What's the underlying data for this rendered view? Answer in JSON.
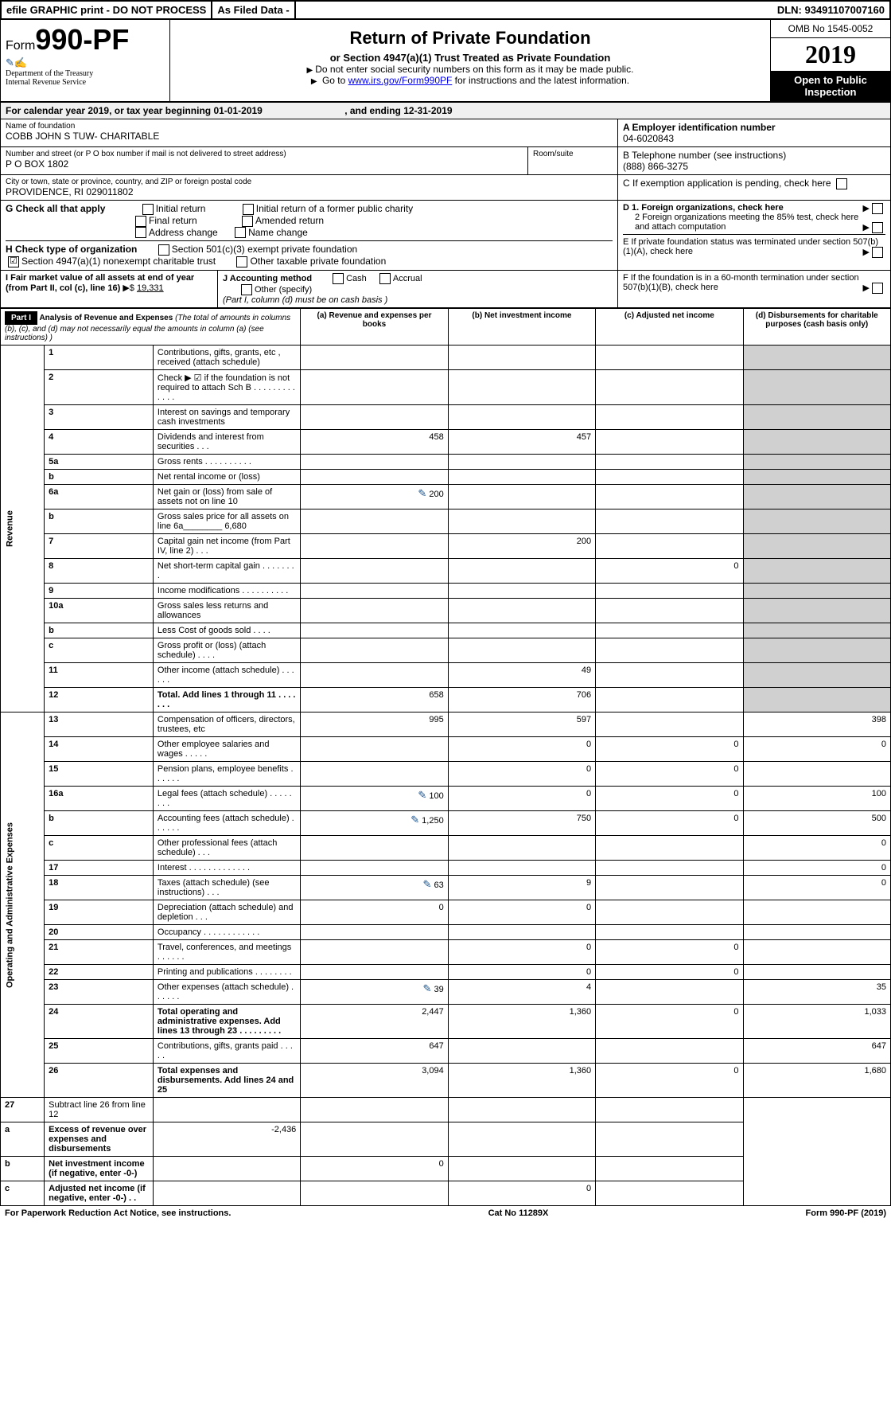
{
  "topbar": {
    "efile": "efile GRAPHIC print - DO NOT PROCESS",
    "asfiled": "As Filed Data -",
    "dln_label": "DLN:",
    "dln": "93491107007160"
  },
  "header": {
    "form_prefix": "Form",
    "form_number": "990-PF",
    "dept1": "Department of the Treasury",
    "dept2": "Internal Revenue Service",
    "title": "Return of Private Foundation",
    "subtitle": "or Section 4947(a)(1) Trust Treated as Private Foundation",
    "instr1": "Do not enter social security numbers on this form as it may be made public.",
    "instr2_pre": "Go to ",
    "instr2_link": "www.irs.gov/Form990PF",
    "instr2_post": " for instructions and the latest information.",
    "omb": "OMB No 1545-0052",
    "year": "2019",
    "inspection": "Open to Public Inspection"
  },
  "calendar": {
    "pre": "For calendar year 2019, or tax year beginning ",
    "begin": "01-01-2019",
    "mid": ", and ending ",
    "end": "12-31-2019"
  },
  "entity": {
    "name_label": "Name of foundation",
    "name": "COBB JOHN S TUW- CHARITABLE",
    "ein_label": "A Employer identification number",
    "ein": "04-6020843",
    "addr_label": "Number and street (or P O  box number if mail is not delivered to street address)",
    "addr": "P O BOX 1802",
    "room_label": "Room/suite",
    "phone_label": "B Telephone number (see instructions)",
    "phone": "(888) 866-3275",
    "city_label": "City or town, state or province, country, and ZIP or foreign postal code",
    "city": "PROVIDENCE, RI  029011802",
    "c_label": "C If exemption application is pending, check here"
  },
  "checks": {
    "g_label": "G Check all that apply",
    "g1": "Initial return",
    "g2": "Initial return of a former public charity",
    "g3": "Final return",
    "g4": "Amended return",
    "g5": "Address change",
    "g6": "Name change",
    "d1": "D 1. Foreign organizations, check here",
    "d2": "2 Foreign organizations meeting the 85% test, check here and attach computation",
    "e": "E  If private foundation status was terminated under section 507(b)(1)(A), check here",
    "h_label": "H Check type of organization",
    "h1": "Section 501(c)(3) exempt private foundation",
    "h2": "Section 4947(a)(1) nonexempt charitable trust",
    "h3": "Other taxable private foundation",
    "i_label": "I Fair market value of all assets at end of year (from Part II, col  (c), line 16)",
    "i_val": "19,331",
    "j_label": "J Accounting method",
    "j1": "Cash",
    "j2": "Accrual",
    "j3": "Other (specify)",
    "j_note": "(Part I, column (d) must be on cash basis )",
    "f": "F  If the foundation is in a 60-month termination under section 507(b)(1)(B), check here"
  },
  "part1": {
    "label": "Part I",
    "title": "Analysis of Revenue and Expenses",
    "title_note": "(The total of amounts in columns (b), (c), and (d) may not necessarily equal the amounts in column (a) (see instructions) )",
    "col_a": "(a) Revenue and expenses per books",
    "col_b": "(b) Net investment income",
    "col_c": "(c) Adjusted net income",
    "col_d": "(d) Disbursements for charitable purposes (cash basis only)",
    "revenue_label": "Revenue",
    "expenses_label": "Operating and Administrative Expenses"
  },
  "rows": [
    {
      "n": "1",
      "d": "Contributions, gifts, grants, etc , received (attach schedule)",
      "a": "",
      "b": "",
      "c": "",
      "e": ""
    },
    {
      "n": "2",
      "d": "Check ▶ ☑ if the foundation is not required to attach Sch  B   .  .  .  .  .  .  .  .  .  .  .  .  .",
      "a": "",
      "b": "",
      "c": "",
      "e": ""
    },
    {
      "n": "3",
      "d": "Interest on savings and temporary cash investments",
      "a": "",
      "b": "",
      "c": "",
      "e": ""
    },
    {
      "n": "4",
      "d": "Dividends and interest from securities   .  .  .",
      "a": "458",
      "b": "457",
      "c": "",
      "e": ""
    },
    {
      "n": "5a",
      "d": "Gross rents   .  .  .  .  .  .  .  .  .  .",
      "a": "",
      "b": "",
      "c": "",
      "e": ""
    },
    {
      "n": "b",
      "d": "Net rental income or (loss)",
      "a": "",
      "b": "",
      "c": "",
      "e": ""
    },
    {
      "n": "6a",
      "d": "Net gain or (loss) from sale of assets not on line 10",
      "a": "200",
      "b": "",
      "c": "",
      "e": "",
      "pen": true
    },
    {
      "n": "b",
      "d": "Gross sales price for all assets on line 6a________  6,680",
      "a": "",
      "b": "",
      "c": "",
      "e": ""
    },
    {
      "n": "7",
      "d": "Capital gain net income (from Part IV, line 2)  .  .  .",
      "a": "",
      "b": "200",
      "c": "",
      "e": ""
    },
    {
      "n": "8",
      "d": "Net short-term capital gain  .  .  .  .  .  .  .  .",
      "a": "",
      "b": "",
      "c": "0",
      "e": ""
    },
    {
      "n": "9",
      "d": "Income modifications .  .  .  .  .  .  .  .  .  .",
      "a": "",
      "b": "",
      "c": "",
      "e": ""
    },
    {
      "n": "10a",
      "d": "Gross sales less returns and allowances",
      "a": "",
      "b": "",
      "c": "",
      "e": ""
    },
    {
      "n": "b",
      "d": "Less  Cost of goods sold   .  .  .  .",
      "a": "",
      "b": "",
      "c": "",
      "e": ""
    },
    {
      "n": "c",
      "d": "Gross profit or (loss) (attach schedule)   .  .  .  .",
      "a": "",
      "b": "",
      "c": "",
      "e": ""
    },
    {
      "n": "11",
      "d": "Other income (attach schedule)   .  .  .  .  .  .",
      "a": "",
      "b": "49",
      "c": "",
      "e": ""
    },
    {
      "n": "12",
      "d": "Total. Add lines 1 through 11  .  .  .  .  .  .  .",
      "a": "658",
      "b": "706",
      "c": "",
      "e": "",
      "bold": true
    }
  ],
  "exp_rows": [
    {
      "n": "13",
      "d": "Compensation of officers, directors, trustees, etc",
      "a": "995",
      "b": "597",
      "c": "",
      "e": "398"
    },
    {
      "n": "14",
      "d": "Other employee salaries and wages  .  .  .  .  .",
      "a": "",
      "b": "0",
      "c": "0",
      "e": "0"
    },
    {
      "n": "15",
      "d": "Pension plans, employee benefits .  .  .  .  .  .",
      "a": "",
      "b": "0",
      "c": "0",
      "e": ""
    },
    {
      "n": "16a",
      "d": "Legal fees (attach schedule) .  .  .  .  .  .  .  .",
      "a": "100",
      "b": "0",
      "c": "0",
      "e": "100",
      "pen": true
    },
    {
      "n": "b",
      "d": "Accounting fees (attach schedule) .  .  .  .  .  .",
      "a": "1,250",
      "b": "750",
      "c": "0",
      "e": "500",
      "pen": true
    },
    {
      "n": "c",
      "d": "Other professional fees (attach schedule)   .  .  .",
      "a": "",
      "b": "",
      "c": "",
      "e": "0"
    },
    {
      "n": "17",
      "d": "Interest .  .  .  .  .  .  .  .  .  .  .  .  .",
      "a": "",
      "b": "",
      "c": "",
      "e": "0"
    },
    {
      "n": "18",
      "d": "Taxes (attach schedule) (see instructions)   .  .  .",
      "a": "63",
      "b": "9",
      "c": "",
      "e": "0",
      "pen": true
    },
    {
      "n": "19",
      "d": "Depreciation (attach schedule) and depletion  .  .  .",
      "a": "0",
      "b": "0",
      "c": "",
      "e": ""
    },
    {
      "n": "20",
      "d": "Occupancy .  .  .  .  .  .  .  .  .  .  .  .",
      "a": "",
      "b": "",
      "c": "",
      "e": ""
    },
    {
      "n": "21",
      "d": "Travel, conferences, and meetings .  .  .  .  .  .",
      "a": "",
      "b": "0",
      "c": "0",
      "e": ""
    },
    {
      "n": "22",
      "d": "Printing and publications .  .  .  .  .  .  .  .",
      "a": "",
      "b": "0",
      "c": "0",
      "e": ""
    },
    {
      "n": "23",
      "d": "Other expenses (attach schedule) .  .  .  .  .  .",
      "a": "39",
      "b": "4",
      "c": "",
      "e": "35",
      "pen": true
    },
    {
      "n": "24",
      "d": "Total operating and administrative expenses. Add lines 13 through 23  .  .  .  .  .  .  .  .  .",
      "a": "2,447",
      "b": "1,360",
      "c": "0",
      "e": "1,033",
      "bold": true
    },
    {
      "n": "25",
      "d": "Contributions, gifts, grants paid   .  .  .  .  .",
      "a": "647",
      "b": "",
      "c": "",
      "e": "647"
    },
    {
      "n": "26",
      "d": "Total expenses and disbursements. Add lines 24 and 25",
      "a": "3,094",
      "b": "1,360",
      "c": "0",
      "e": "1,680",
      "bold": true
    }
  ],
  "net_rows": [
    {
      "n": "27",
      "d": "Subtract line 26 from line 12",
      "a": "",
      "b": "",
      "c": "",
      "e": ""
    },
    {
      "n": "a",
      "d": "Excess of revenue over expenses and disbursements",
      "a": "-2,436",
      "b": "",
      "c": "",
      "e": "",
      "bold": true
    },
    {
      "n": "b",
      "d": "Net investment income (if negative, enter -0-)",
      "a": "",
      "b": "0",
      "c": "",
      "e": "",
      "bold": true
    },
    {
      "n": "c",
      "d": "Adjusted net income (if negative, enter -0-)  .  .",
      "a": "",
      "b": "",
      "c": "0",
      "e": "",
      "bold": true
    }
  ],
  "footer": {
    "left": "For Paperwork Reduction Act Notice, see instructions.",
    "mid": "Cat  No  11289X",
    "right": "Form 990-PF (2019)"
  }
}
